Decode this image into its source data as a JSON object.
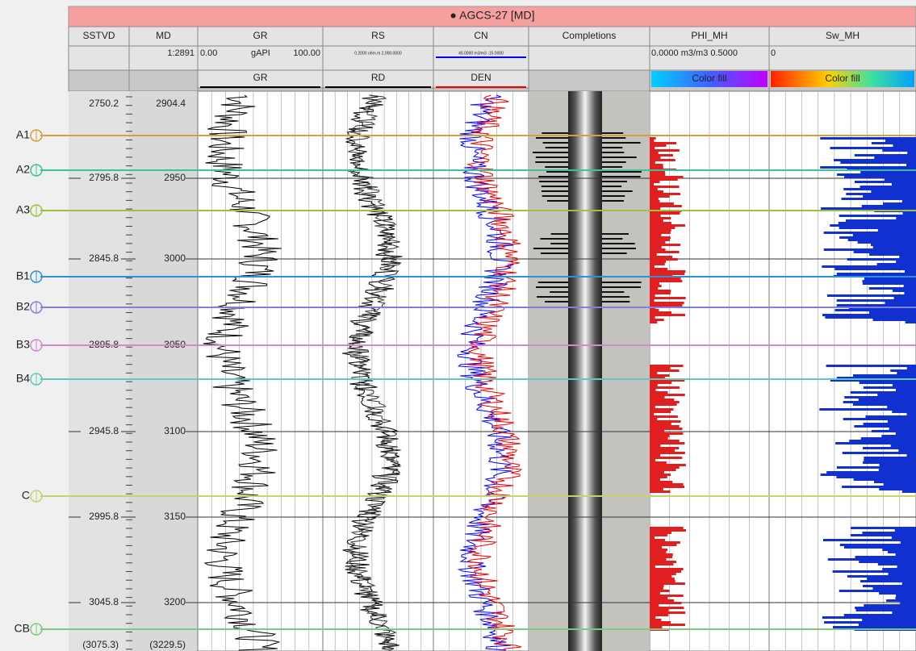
{
  "header": {
    "title": "● AGCS-27 [MD]"
  },
  "columns": [
    {
      "name": "SSTVD"
    },
    {
      "name": "MD",
      "scale": "1:2891"
    },
    {
      "name": "GR",
      "min": "0.00",
      "unit": "gAPI",
      "max": "100.00",
      "second": "GR"
    },
    {
      "name": "RS",
      "scale": "0.2000 ohm.m 2,000.0000",
      "second": "RD"
    },
    {
      "name": "CN",
      "scale": "45.0000 m3/m3 -15.0000",
      "second": "DEN"
    },
    {
      "name": "Completions"
    },
    {
      "name": "PHI_MH",
      "scale": "0.0000 m3/m3 0.5000",
      "fill": "Color fill"
    },
    {
      "name": "Sw_MH",
      "scale": "0",
      "fill": "Color fill"
    }
  ],
  "depths": {
    "sstvd": [
      "2750.2",
      "2795.8",
      "2845.8",
      "2895.8",
      "2945.8",
      "2995.8",
      "3045.8",
      "(3075.3)"
    ],
    "md": [
      "2904.4",
      "2950",
      "3000",
      "3050",
      "3100",
      "3150",
      "3200",
      "(3229.5)"
    ]
  },
  "tops": [
    {
      "name": "A1",
      "color": "#d4a040"
    },
    {
      "name": "A2",
      "color": "#3cc0a0"
    },
    {
      "name": "A3",
      "color": "#9cc040"
    },
    {
      "name": "B1",
      "color": "#3090d0"
    },
    {
      "name": "B2",
      "color": "#8080d8"
    },
    {
      "name": "B3",
      "color": "#d08ad0"
    },
    {
      "name": "B4",
      "color": "#60c8c0"
    },
    {
      "name": "C",
      "color": "#c8d070"
    },
    {
      "name": "CB",
      "color": "#80c880"
    }
  ]
}
